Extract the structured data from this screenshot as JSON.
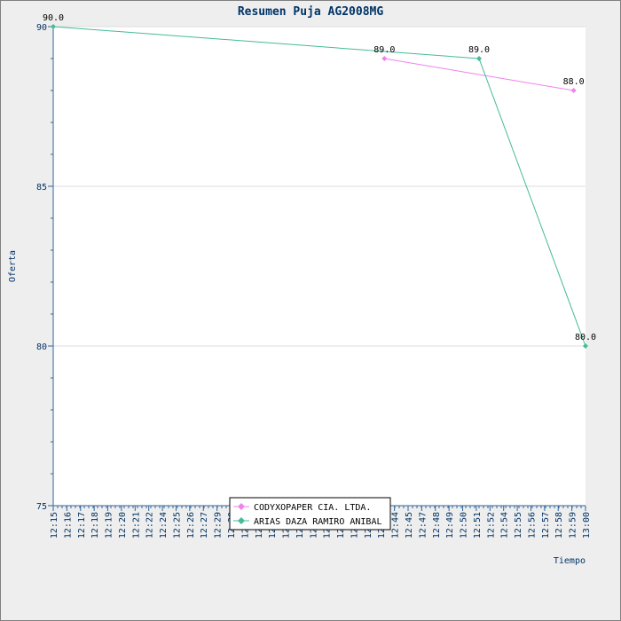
{
  "chart_data": {
    "type": "line",
    "title": "Resumen Puja AG2008MG",
    "xlabel": "Tiempo",
    "ylabel": "Oferta",
    "ylim": [
      75,
      90
    ],
    "yticks": [
      75,
      80,
      85,
      90
    ],
    "xlim": [
      "12:15",
      "13:00"
    ],
    "xtick_labels": [
      "12:15",
      "12:16",
      "12:17",
      "12:18",
      "12:19",
      "12:20",
      "12:21",
      "12:22",
      "12:24",
      "12:25",
      "12:26",
      "12:27",
      "12:29",
      "12:30",
      "12:31",
      "12:32",
      "12:33",
      "12:35",
      "12:36",
      "12:37",
      "12:38",
      "12:39",
      "12:41",
      "12:42",
      "12:43",
      "12:44",
      "12:45",
      "12:47",
      "12:48",
      "12:49",
      "12:50",
      "12:51",
      "12:52",
      "12:54",
      "12:55",
      "12:56",
      "12:57",
      "12:58",
      "12:59",
      "13:00"
    ],
    "grid": "horizontal",
    "legend_position": "bottom-center",
    "series": [
      {
        "name": "CODYXOPAPER CIA. LTDA.",
        "color": "#ee82ee",
        "marker": "diamond",
        "points": [
          {
            "x": "12:43",
            "y": 89.0,
            "label": "89.0"
          },
          {
            "x": "12:59",
            "y": 88.0,
            "label": "88.0"
          }
        ]
      },
      {
        "name": "ARIAS DAZA RAMIRO ANIBAL",
        "color": "#44bb99",
        "marker": "diamond",
        "points": [
          {
            "x": "12:15",
            "y": 90.0,
            "label": "90.0"
          },
          {
            "x": "12:51",
            "y": 89.0,
            "label": "89.0"
          },
          {
            "x": "13:00",
            "y": 80.0,
            "label": "80.0"
          }
        ]
      }
    ]
  }
}
